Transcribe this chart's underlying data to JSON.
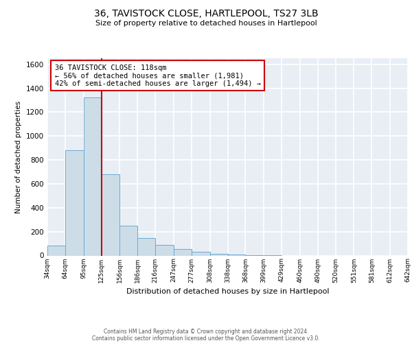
{
  "title": "36, TAVISTOCK CLOSE, HARTLEPOOL, TS27 3LB",
  "subtitle": "Size of property relative to detached houses in Hartlepool",
  "xlabel": "Distribution of detached houses by size in Hartlepool",
  "ylabel": "Number of detached properties",
  "bar_color": "#ccdde8",
  "bar_edge_color": "#6aaad4",
  "background_color": "#e8eef4",
  "grid_color": "#ffffff",
  "vline_color": "#cc0000",
  "vline_x": 125,
  "bins": [
    34,
    64,
    95,
    125,
    156,
    186,
    216,
    247,
    277,
    308,
    338,
    368,
    399,
    429,
    460,
    490,
    520,
    551,
    581,
    612,
    642
  ],
  "bin_labels": [
    "34sqm",
    "64sqm",
    "95sqm",
    "125sqm",
    "156sqm",
    "186sqm",
    "216sqm",
    "247sqm",
    "277sqm",
    "308sqm",
    "338sqm",
    "368sqm",
    "399sqm",
    "429sqm",
    "460sqm",
    "490sqm",
    "520sqm",
    "551sqm",
    "581sqm",
    "612sqm",
    "642sqm"
  ],
  "values": [
    85,
    880,
    1320,
    680,
    250,
    145,
    90,
    55,
    30,
    15,
    10,
    5,
    2,
    0,
    0,
    0,
    0,
    0,
    0,
    0,
    0
  ],
  "ylim": [
    0,
    1650
  ],
  "yticks": [
    0,
    200,
    400,
    600,
    800,
    1000,
    1200,
    1400,
    1600
  ],
  "annotation_line1": "36 TAVISTOCK CLOSE: 118sqm",
  "annotation_line2": "← 56% of detached houses are smaller (1,981)",
  "annotation_line3": "42% of semi-detached houses are larger (1,494) →",
  "annotation_border_color": "#cc0000",
  "footer1": "Contains HM Land Registry data © Crown copyright and database right 2024.",
  "footer2": "Contains public sector information licensed under the Open Government Licence v3.0."
}
